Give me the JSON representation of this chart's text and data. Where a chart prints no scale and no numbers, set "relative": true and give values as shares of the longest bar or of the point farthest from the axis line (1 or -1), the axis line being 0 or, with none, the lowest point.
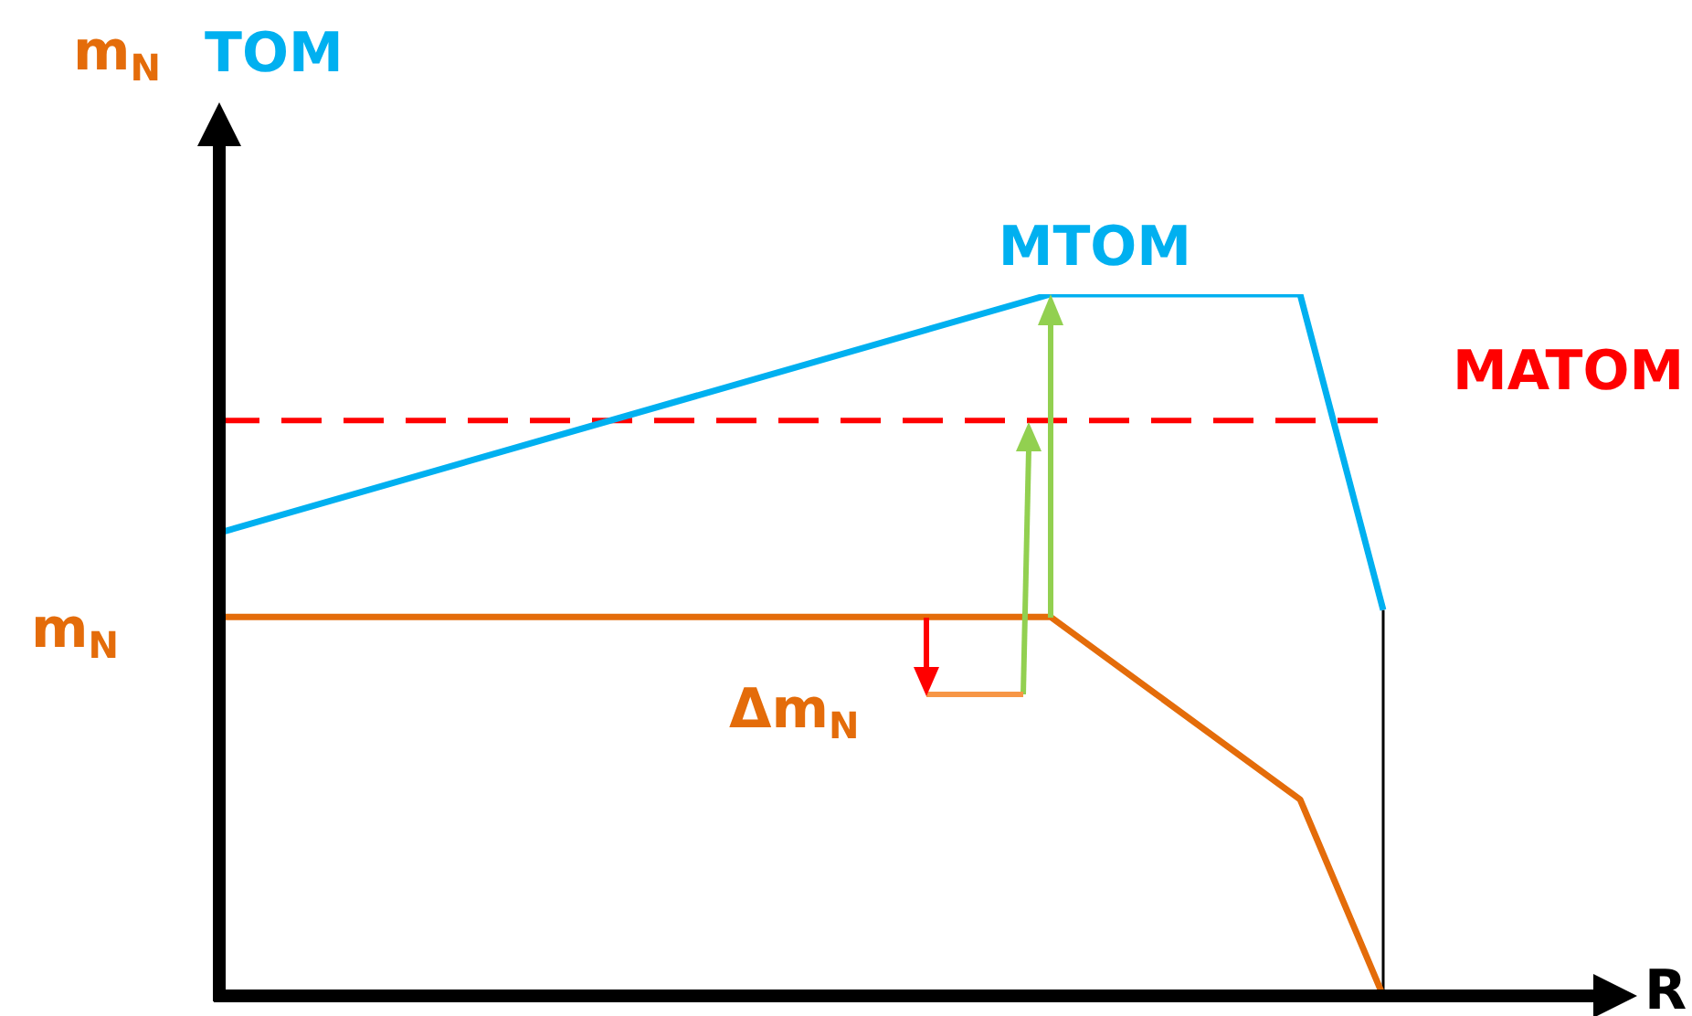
{
  "chart_data": {
    "type": "line",
    "relative": true,
    "tick_labels": false,
    "legend": false,
    "marker": "none",
    "xlabel": "R",
    "categories": [
      null,
      null,
      null,
      null,
      null,
      null,
      null,
      null,
      null,
      null,
      null,
      null,
      null,
      null,
      null
    ],
    "series": [
      {
        "name": "m$_{N}$",
        "color": "#e46c0a",
        "values": [
          0.54,
          null,
          null,
          null,
          null,
          null,
          null,
          null,
          null,
          null,
          0.54,
          null,
          null,
          0.28,
          0
        ]
      },
      {
        "name": "TOM",
        "color": "#00b0f0",
        "values": [
          0.66,
          null,
          null,
          null,
          null,
          null,
          null,
          null,
          null,
          null,
          1,
          null,
          null,
          1,
          0.55
        ]
      }
    ],
    "ref_lines": [
      {
        "axis": "y",
        "value": 0.82,
        "label": "MATOM",
        "color": "#ff0000",
        "line_style": "dashed"
      }
    ],
    "annotations": [
      {
        "text": "MTOM",
        "y": 1
      },
      "Δm$_{N}$",
      "m$_{N}$"
    ]
  }
}
